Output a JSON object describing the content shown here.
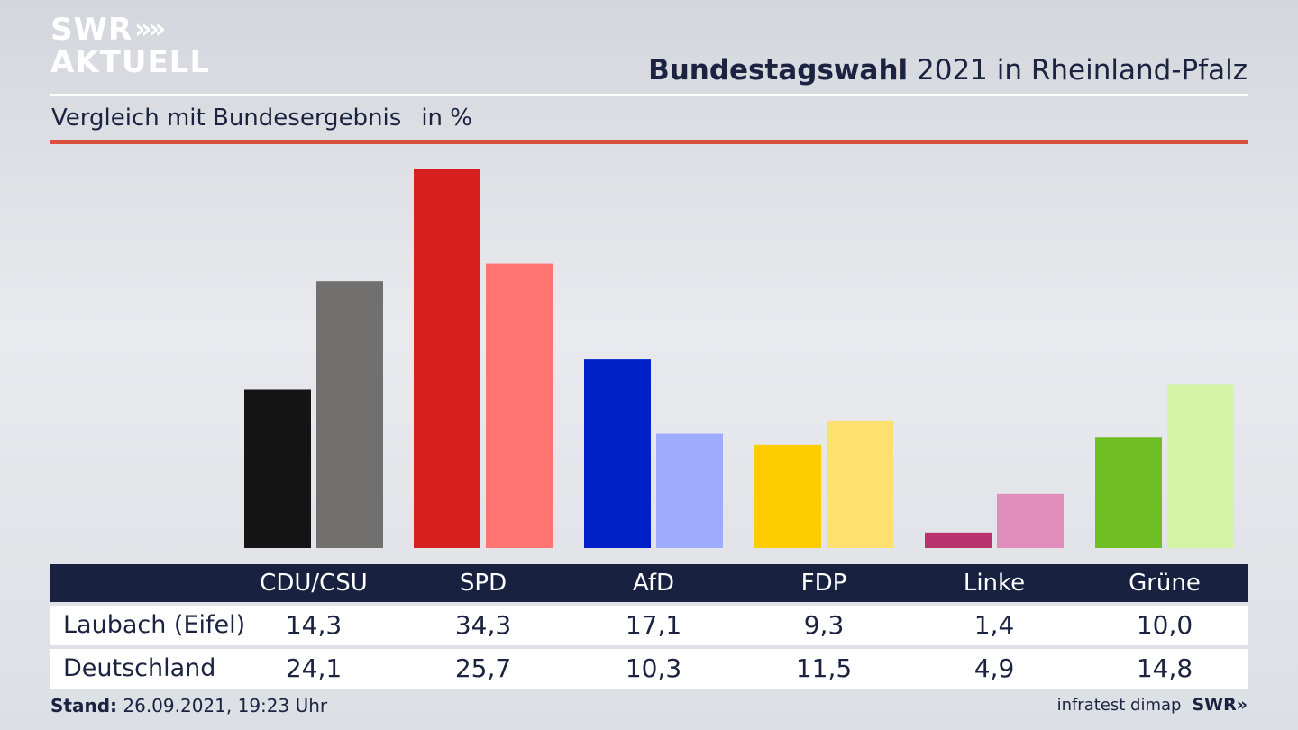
{
  "logo": {
    "line1": "SWR",
    "line2": "AKTUELL",
    "chevrons": "»"
  },
  "header": {
    "title_bold": "Bundestagswahl",
    "title_rest": " 2021 in Rheinland-Pfalz"
  },
  "subheader": {
    "subtitle": "Vergleich mit Bundesergebnis",
    "unit": "in %"
  },
  "footer": {
    "stand_label": "Stand:",
    "stand_value": " 26.09.2021, 19:23 Uhr",
    "source": "infratest dimap",
    "brand": "SWR»"
  },
  "chart_data": {
    "type": "bar",
    "categories": [
      "CDU/CSU",
      "SPD",
      "AfD",
      "FDP",
      "Linke",
      "Grüne"
    ],
    "series": [
      {
        "name": "Laubach (Eifel)",
        "values": [
          14.3,
          34.3,
          17.1,
          9.3,
          1.4,
          10.0
        ],
        "colors": [
          "#141414",
          "#d81f1f",
          "#0020c8",
          "#ffcc00",
          "#b8326e",
          "#6fbe24"
        ]
      },
      {
        "name": "Deutschland",
        "values": [
          24.1,
          25.7,
          10.3,
          11.5,
          4.9,
          14.8
        ],
        "colors": [
          "#72706f",
          "#ff7470",
          "#9eabff",
          "#fee070",
          "#e08dbb",
          "#d5f5a6"
        ]
      }
    ],
    "value_labels": [
      [
        "14,3",
        "34,3",
        "17,1",
        "9,3",
        "1,4",
        "10,0"
      ],
      [
        "24,1",
        "25,7",
        "10,3",
        "11,5",
        "4,9",
        "14,8"
      ]
    ],
    "ylim": [
      0,
      35
    ],
    "grid": false,
    "legend": "table-below"
  }
}
